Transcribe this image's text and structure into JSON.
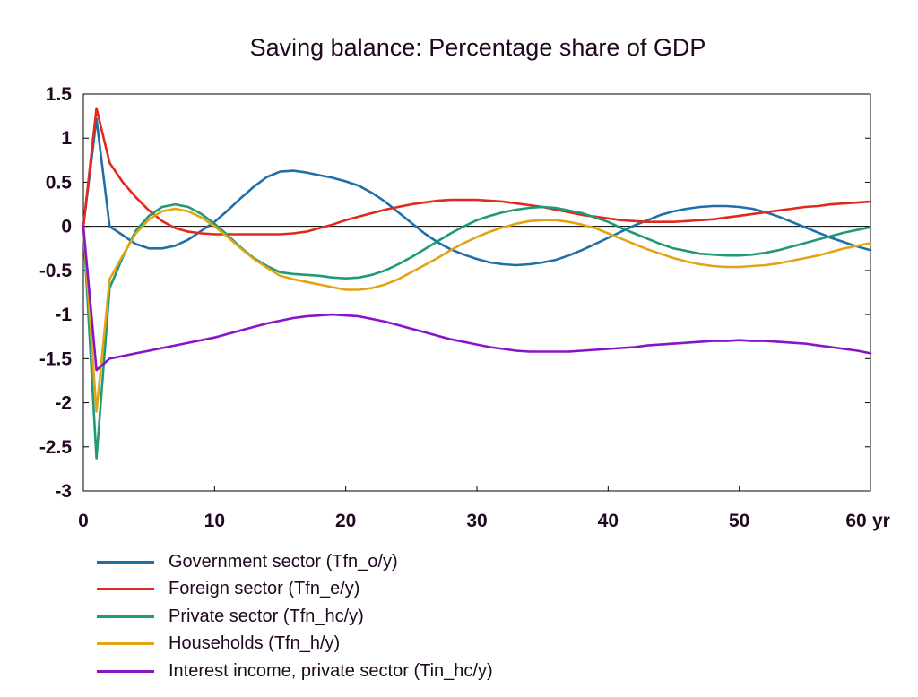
{
  "chart_data": {
    "type": "line",
    "title": "Saving balance: Percentage share of GDP",
    "x_unit": "yr",
    "xlim": [
      0,
      60
    ],
    "ylim": [
      -3,
      1.5
    ],
    "xticks": [
      0,
      10,
      20,
      30,
      40,
      50,
      60
    ],
    "yticks": [
      1.5,
      1,
      0.5,
      0,
      -0.5,
      -1,
      -1.5,
      -2,
      -2.5,
      -3
    ],
    "zero_line": true,
    "grid": false,
    "legend_position": "bottom-left",
    "series": [
      {
        "name": "Government sector (Tfn_o/y)",
        "color": "#1f6fa8",
        "points": [
          [
            0,
            0
          ],
          [
            1,
            1.22
          ],
          [
            2,
            0
          ],
          [
            3,
            -0.1
          ],
          [
            4,
            -0.2
          ],
          [
            5,
            -0.25
          ],
          [
            6,
            -0.25
          ],
          [
            7,
            -0.22
          ],
          [
            8,
            -0.15
          ],
          [
            9,
            -0.05
          ],
          [
            10,
            0.05
          ],
          [
            11,
            0.18
          ],
          [
            12,
            0.32
          ],
          [
            13,
            0.45
          ],
          [
            14,
            0.56
          ],
          [
            15,
            0.62
          ],
          [
            16,
            0.63
          ],
          [
            17,
            0.61
          ],
          [
            18,
            0.58
          ],
          [
            19,
            0.55
          ],
          [
            20,
            0.51
          ],
          [
            21,
            0.46
          ],
          [
            22,
            0.38
          ],
          [
            23,
            0.28
          ],
          [
            24,
            0.16
          ],
          [
            25,
            0.04
          ],
          [
            26,
            -0.08
          ],
          [
            27,
            -0.18
          ],
          [
            28,
            -0.26
          ],
          [
            29,
            -0.32
          ],
          [
            30,
            -0.37
          ],
          [
            31,
            -0.41
          ],
          [
            32,
            -0.43
          ],
          [
            33,
            -0.44
          ],
          [
            34,
            -0.43
          ],
          [
            35,
            -0.41
          ],
          [
            36,
            -0.38
          ],
          [
            37,
            -0.33
          ],
          [
            38,
            -0.27
          ],
          [
            39,
            -0.2
          ],
          [
            40,
            -0.13
          ],
          [
            41,
            -0.06
          ],
          [
            42,
            0.01
          ],
          [
            43,
            0.07
          ],
          [
            44,
            0.13
          ],
          [
            45,
            0.17
          ],
          [
            46,
            0.2
          ],
          [
            47,
            0.22
          ],
          [
            48,
            0.23
          ],
          [
            49,
            0.23
          ],
          [
            50,
            0.22
          ],
          [
            51,
            0.2
          ],
          [
            52,
            0.16
          ],
          [
            53,
            0.11
          ],
          [
            54,
            0.05
          ],
          [
            55,
            -0.01
          ],
          [
            56,
            -0.07
          ],
          [
            57,
            -0.13
          ],
          [
            58,
            -0.18
          ],
          [
            59,
            -0.23
          ],
          [
            60,
            -0.27
          ]
        ]
      },
      {
        "name": "Foreign sector (Tfn_e/y)",
        "color": "#e02a1e",
        "points": [
          [
            0,
            0
          ],
          [
            1,
            1.34
          ],
          [
            2,
            0.72
          ],
          [
            3,
            0.5
          ],
          [
            4,
            0.33
          ],
          [
            5,
            0.18
          ],
          [
            6,
            0.06
          ],
          [
            7,
            -0.02
          ],
          [
            8,
            -0.06
          ],
          [
            9,
            -0.08
          ],
          [
            10,
            -0.09
          ],
          [
            11,
            -0.09
          ],
          [
            12,
            -0.09
          ],
          [
            13,
            -0.09
          ],
          [
            14,
            -0.09
          ],
          [
            15,
            -0.09
          ],
          [
            16,
            -0.08
          ],
          [
            17,
            -0.06
          ],
          [
            18,
            -0.02
          ],
          [
            19,
            0.02
          ],
          [
            20,
            0.07
          ],
          [
            21,
            0.11
          ],
          [
            22,
            0.15
          ],
          [
            23,
            0.19
          ],
          [
            24,
            0.22
          ],
          [
            25,
            0.25
          ],
          [
            26,
            0.27
          ],
          [
            27,
            0.29
          ],
          [
            28,
            0.3
          ],
          [
            29,
            0.3
          ],
          [
            30,
            0.3
          ],
          [
            31,
            0.29
          ],
          [
            32,
            0.28
          ],
          [
            33,
            0.26
          ],
          [
            34,
            0.24
          ],
          [
            35,
            0.22
          ],
          [
            36,
            0.19
          ],
          [
            37,
            0.16
          ],
          [
            38,
            0.13
          ],
          [
            39,
            0.11
          ],
          [
            40,
            0.09
          ],
          [
            41,
            0.07
          ],
          [
            42,
            0.06
          ],
          [
            43,
            0.05
          ],
          [
            44,
            0.05
          ],
          [
            45,
            0.05
          ],
          [
            46,
            0.06
          ],
          [
            47,
            0.07
          ],
          [
            48,
            0.08
          ],
          [
            49,
            0.1
          ],
          [
            50,
            0.12
          ],
          [
            51,
            0.14
          ],
          [
            52,
            0.16
          ],
          [
            53,
            0.18
          ],
          [
            54,
            0.2
          ],
          [
            55,
            0.22
          ],
          [
            56,
            0.23
          ],
          [
            57,
            0.25
          ],
          [
            58,
            0.26
          ],
          [
            59,
            0.27
          ],
          [
            60,
            0.28
          ]
        ]
      },
      {
        "name": "Private sector (Tfn_hc/y)",
        "color": "#1d9a78",
        "points": [
          [
            0,
            0
          ],
          [
            1,
            -2.63
          ],
          [
            2,
            -0.7
          ],
          [
            3,
            -0.35
          ],
          [
            4,
            -0.05
          ],
          [
            5,
            0.12
          ],
          [
            6,
            0.22
          ],
          [
            7,
            0.25
          ],
          [
            8,
            0.22
          ],
          [
            9,
            0.14
          ],
          [
            10,
            0.03
          ],
          [
            11,
            -0.1
          ],
          [
            12,
            -0.24
          ],
          [
            13,
            -0.36
          ],
          [
            14,
            -0.45
          ],
          [
            15,
            -0.52
          ],
          [
            16,
            -0.54
          ],
          [
            17,
            -0.55
          ],
          [
            18,
            -0.56
          ],
          [
            19,
            -0.58
          ],
          [
            20,
            -0.59
          ],
          [
            21,
            -0.58
          ],
          [
            22,
            -0.55
          ],
          [
            23,
            -0.5
          ],
          [
            24,
            -0.43
          ],
          [
            25,
            -0.35
          ],
          [
            26,
            -0.26
          ],
          [
            27,
            -0.17
          ],
          [
            28,
            -0.08
          ],
          [
            29,
            0
          ],
          [
            30,
            0.07
          ],
          [
            31,
            0.12
          ],
          [
            32,
            0.16
          ],
          [
            33,
            0.19
          ],
          [
            34,
            0.21
          ],
          [
            35,
            0.22
          ],
          [
            36,
            0.21
          ],
          [
            37,
            0.18
          ],
          [
            38,
            0.15
          ],
          [
            39,
            0.1
          ],
          [
            40,
            0.05
          ],
          [
            41,
            -0.02
          ],
          [
            42,
            -0.08
          ],
          [
            43,
            -0.14
          ],
          [
            44,
            -0.2
          ],
          [
            45,
            -0.25
          ],
          [
            46,
            -0.28
          ],
          [
            47,
            -0.31
          ],
          [
            48,
            -0.32
          ],
          [
            49,
            -0.33
          ],
          [
            50,
            -0.33
          ],
          [
            51,
            -0.32
          ],
          [
            52,
            -0.3
          ],
          [
            53,
            -0.27
          ],
          [
            54,
            -0.23
          ],
          [
            55,
            -0.19
          ],
          [
            56,
            -0.15
          ],
          [
            57,
            -0.11
          ],
          [
            58,
            -0.07
          ],
          [
            59,
            -0.04
          ],
          [
            60,
            -0.01
          ]
        ]
      },
      {
        "name": "Households (Tfn_h/y)",
        "color": "#e3a313",
        "points": [
          [
            0,
            0
          ],
          [
            1,
            -2.1
          ],
          [
            2,
            -0.6
          ],
          [
            3,
            -0.33
          ],
          [
            4,
            -0.08
          ],
          [
            5,
            0.08
          ],
          [
            6,
            0.17
          ],
          [
            7,
            0.2
          ],
          [
            8,
            0.17
          ],
          [
            9,
            0.1
          ],
          [
            10,
            0
          ],
          [
            11,
            -0.12
          ],
          [
            12,
            -0.25
          ],
          [
            13,
            -0.37
          ],
          [
            14,
            -0.47
          ],
          [
            15,
            -0.56
          ],
          [
            16,
            -0.6
          ],
          [
            17,
            -0.63
          ],
          [
            18,
            -0.66
          ],
          [
            19,
            -0.69
          ],
          [
            20,
            -0.72
          ],
          [
            21,
            -0.72
          ],
          [
            22,
            -0.7
          ],
          [
            23,
            -0.66
          ],
          [
            24,
            -0.6
          ],
          [
            25,
            -0.52
          ],
          [
            26,
            -0.44
          ],
          [
            27,
            -0.36
          ],
          [
            28,
            -0.27
          ],
          [
            29,
            -0.19
          ],
          [
            30,
            -0.12
          ],
          [
            31,
            -0.06
          ],
          [
            32,
            -0.01
          ],
          [
            33,
            0.03
          ],
          [
            34,
            0.06
          ],
          [
            35,
            0.07
          ],
          [
            36,
            0.07
          ],
          [
            37,
            0.05
          ],
          [
            38,
            0.02
          ],
          [
            39,
            -0.02
          ],
          [
            40,
            -0.08
          ],
          [
            41,
            -0.14
          ],
          [
            42,
            -0.2
          ],
          [
            43,
            -0.26
          ],
          [
            44,
            -0.31
          ],
          [
            45,
            -0.36
          ],
          [
            46,
            -0.4
          ],
          [
            47,
            -0.43
          ],
          [
            48,
            -0.45
          ],
          [
            49,
            -0.46
          ],
          [
            50,
            -0.46
          ],
          [
            51,
            -0.45
          ],
          [
            52,
            -0.44
          ],
          [
            53,
            -0.42
          ],
          [
            54,
            -0.39
          ],
          [
            55,
            -0.36
          ],
          [
            56,
            -0.33
          ],
          [
            57,
            -0.29
          ],
          [
            58,
            -0.25
          ],
          [
            59,
            -0.22
          ],
          [
            60,
            -0.19
          ]
        ]
      },
      {
        "name": "Interest income, private sector (Tin_hc/y)",
        "color": "#8a13c8",
        "points": [
          [
            0,
            0
          ],
          [
            1,
            -1.63
          ],
          [
            2,
            -1.5
          ],
          [
            3,
            -1.47
          ],
          [
            4,
            -1.44
          ],
          [
            5,
            -1.41
          ],
          [
            6,
            -1.38
          ],
          [
            7,
            -1.35
          ],
          [
            8,
            -1.32
          ],
          [
            9,
            -1.29
          ],
          [
            10,
            -1.26
          ],
          [
            11,
            -1.22
          ],
          [
            12,
            -1.18
          ],
          [
            13,
            -1.14
          ],
          [
            14,
            -1.1
          ],
          [
            15,
            -1.07
          ],
          [
            16,
            -1.04
          ],
          [
            17,
            -1.02
          ],
          [
            18,
            -1.01
          ],
          [
            19,
            -1.0
          ],
          [
            20,
            -1.01
          ],
          [
            21,
            -1.02
          ],
          [
            22,
            -1.05
          ],
          [
            23,
            -1.08
          ],
          [
            24,
            -1.12
          ],
          [
            25,
            -1.16
          ],
          [
            26,
            -1.2
          ],
          [
            27,
            -1.24
          ],
          [
            28,
            -1.28
          ],
          [
            29,
            -1.31
          ],
          [
            30,
            -1.34
          ],
          [
            31,
            -1.37
          ],
          [
            32,
            -1.39
          ],
          [
            33,
            -1.41
          ],
          [
            34,
            -1.42
          ],
          [
            35,
            -1.42
          ],
          [
            36,
            -1.42
          ],
          [
            37,
            -1.42
          ],
          [
            38,
            -1.41
          ],
          [
            39,
            -1.4
          ],
          [
            40,
            -1.39
          ],
          [
            41,
            -1.38
          ],
          [
            42,
            -1.37
          ],
          [
            43,
            -1.35
          ],
          [
            44,
            -1.34
          ],
          [
            45,
            -1.33
          ],
          [
            46,
            -1.32
          ],
          [
            47,
            -1.31
          ],
          [
            48,
            -1.3
          ],
          [
            49,
            -1.3
          ],
          [
            50,
            -1.29
          ],
          [
            51,
            -1.3
          ],
          [
            52,
            -1.3
          ],
          [
            53,
            -1.31
          ],
          [
            54,
            -1.32
          ],
          [
            55,
            -1.33
          ],
          [
            56,
            -1.35
          ],
          [
            57,
            -1.37
          ],
          [
            58,
            -1.39
          ],
          [
            59,
            -1.41
          ],
          [
            60,
            -1.44
          ]
        ]
      }
    ]
  }
}
